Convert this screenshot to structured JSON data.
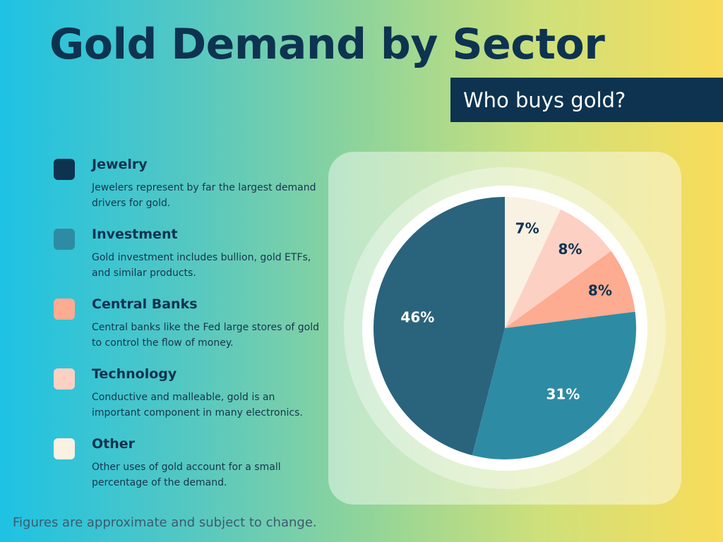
{
  "header": {
    "title": "Gold Demand by Sector",
    "subtitle": "Who buys gold?"
  },
  "legend": [
    {
      "name": "Jewelry",
      "description": "Jewelers represent by far the largest demand drivers for gold.",
      "color": "#0d3350"
    },
    {
      "name": "Investment",
      "description": "Gold investment includes bullion, gold ETFs, and similar products.",
      "color": "#2e8ba4"
    },
    {
      "name": "Central Banks",
      "description": "Central banks like the Fed large stores of gold to control the flow of money.",
      "color": "#fdab91"
    },
    {
      "name": "Technology",
      "description": "Conductive and malleable, gold is an important component in many electronics.",
      "color": "#fdd0c4"
    },
    {
      "name": "Other",
      "description": "Other uses of gold account for a small percentage of the demand.",
      "color": "#f9f1e2"
    }
  ],
  "footnote": "Figures are approximate and subject to change.",
  "chart_data": {
    "type": "pie",
    "slices": [
      {
        "name": "Other",
        "value": 7,
        "label": "7%",
        "color": "#f9f1e2"
      },
      {
        "name": "Technology",
        "value": 8,
        "label": "8%",
        "color": "#fdd0c4"
      },
      {
        "name": "Central Banks",
        "value": 8,
        "label": "8%",
        "color": "#fdab91"
      },
      {
        "name": "Investment",
        "value": 31,
        "label": "31%",
        "color": "#2e8ba4"
      },
      {
        "name": "Jewelry",
        "value": 46,
        "label": "46%",
        "color": "#2a637c"
      }
    ],
    "start": "12 o'clock",
    "direction": "clockwise"
  }
}
